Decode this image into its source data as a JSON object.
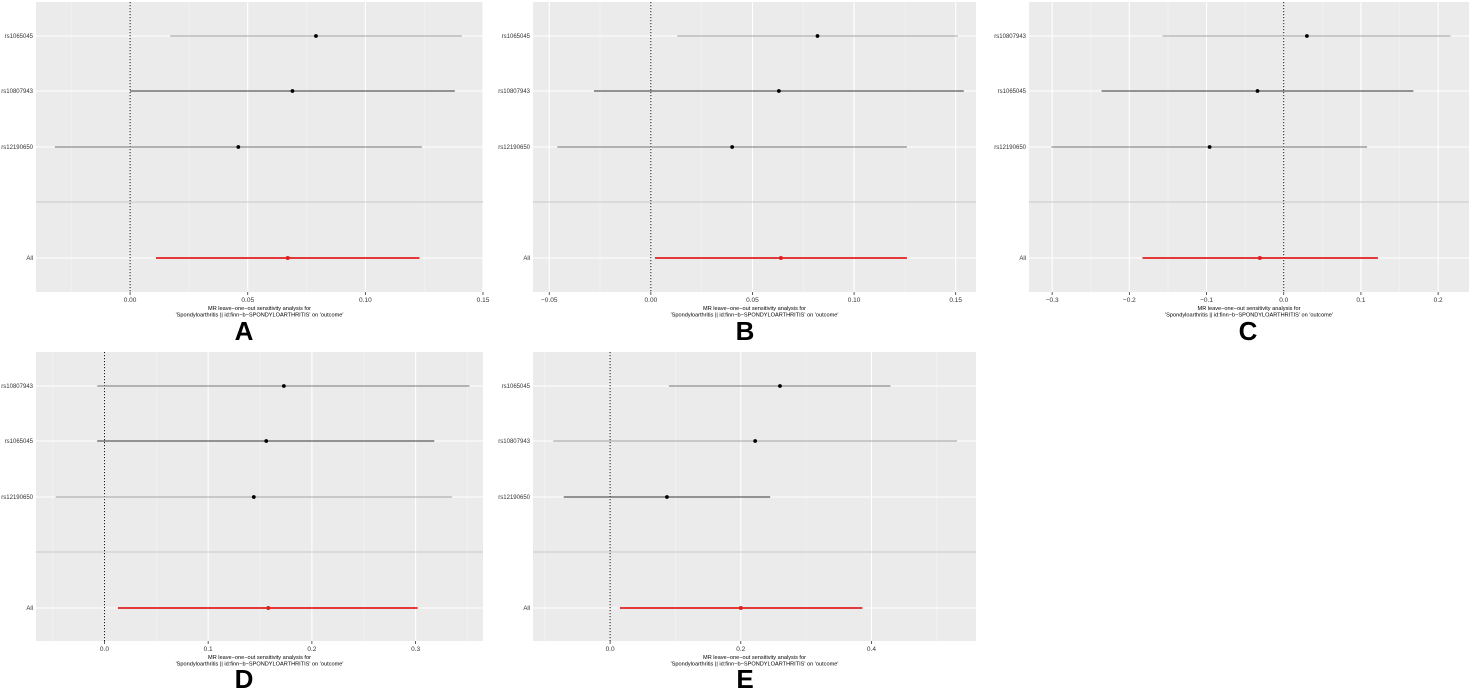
{
  "chart_data": [
    {
      "panel": "A",
      "type": "scatter",
      "subtype": "forest-plot",
      "xlabel_lines": [
        "MR leave−one−out sensitivity analysis for",
        "'Spondyloarthritis || id:finn−b−SPONDYLOARTHRITIS' on 'outcome'"
      ],
      "xlim": [
        -0.04,
        0.15
      ],
      "xticks": [
        0.0,
        0.05,
        0.1,
        0.15
      ],
      "xtick_labels": [
        "0.00",
        "0.05",
        "0.10",
        "0.15"
      ],
      "reference_line": 0,
      "snps": [
        {
          "label": "rs1065045",
          "estimate": 0.079,
          "lower": 0.017,
          "upper": 0.141,
          "color": "#a6a6a6"
        },
        {
          "label": "rs10807943",
          "estimate": 0.069,
          "lower": 0.0,
          "upper": 0.138,
          "color": "#3a3a3a"
        },
        {
          "label": "rs12190650",
          "estimate": 0.046,
          "lower": -0.032,
          "upper": 0.124,
          "color": "#7a7a7a"
        }
      ],
      "all": {
        "label": "All",
        "estimate": 0.067,
        "lower": 0.011,
        "upper": 0.123,
        "color": "#e02020"
      }
    },
    {
      "panel": "B",
      "type": "scatter",
      "subtype": "forest-plot",
      "xlabel_lines": [
        "MR leave−one−out sensitivity analysis for",
        "'Spondyloarthritis || id:finn−b−SPONDYLOARTHRITIS' on 'outcome'"
      ],
      "xlim": [
        -0.058,
        0.16
      ],
      "xticks": [
        -0.05,
        0.0,
        0.05,
        0.1,
        0.15
      ],
      "xtick_labels": [
        "−0.05",
        "0.00",
        "0.05",
        "0.10",
        "0.15"
      ],
      "reference_line": 0,
      "snps": [
        {
          "label": "rs1065045",
          "estimate": 0.082,
          "lower": 0.013,
          "upper": 0.151,
          "color": "#a6a6a6"
        },
        {
          "label": "rs10807943",
          "estimate": 0.063,
          "lower": -0.028,
          "upper": 0.154,
          "color": "#3a3a3a"
        },
        {
          "label": "rs12190650",
          "estimate": 0.04,
          "lower": -0.046,
          "upper": 0.126,
          "color": "#7a7a7a"
        }
      ],
      "all": {
        "label": "All",
        "estimate": 0.064,
        "lower": 0.002,
        "upper": 0.126,
        "color": "#e02020"
      }
    },
    {
      "panel": "C",
      "type": "scatter",
      "subtype": "forest-plot",
      "xlabel_lines": [
        "MR leave−one−out sensitivity analysis for",
        "'Spondyloarthritis || id:finn−b−SPONDYLOARTHRITIS' on 'outcome'"
      ],
      "xlim": [
        -0.33,
        0.24
      ],
      "xticks": [
        -0.3,
        -0.2,
        -0.1,
        0.0,
        0.1,
        0.2
      ],
      "xtick_labels": [
        "−0.3",
        "−0.2",
        "−0.1",
        "0.0",
        "0.1",
        "0.2"
      ],
      "reference_line": 0,
      "snps": [
        {
          "label": "rs10807943",
          "estimate": 0.03,
          "lower": -0.157,
          "upper": 0.216,
          "color": "#a6a6a6"
        },
        {
          "label": "rs1065045",
          "estimate": -0.034,
          "lower": -0.236,
          "upper": 0.168,
          "color": "#3a3a3a"
        },
        {
          "label": "rs12190650",
          "estimate": -0.096,
          "lower": -0.301,
          "upper": 0.108,
          "color": "#7a7a7a"
        }
      ],
      "all": {
        "label": "All",
        "estimate": -0.031,
        "lower": -0.183,
        "upper": 0.122,
        "color": "#e02020"
      }
    },
    {
      "panel": "D",
      "type": "scatter",
      "subtype": "forest-plot",
      "xlabel_lines": [
        "MR leave−one−out sensitivity analysis for",
        "'Spondyloarthritis || id:finn−b−SPONDYLOARTHRITIS' on 'outcome'"
      ],
      "xlim": [
        -0.066,
        0.365
      ],
      "xticks": [
        0.0,
        0.1,
        0.2,
        0.3
      ],
      "xtick_labels": [
        "0.0",
        "0.1",
        "0.2",
        "0.3"
      ],
      "reference_line": 0,
      "snps": [
        {
          "label": "rs10807943",
          "estimate": 0.173,
          "lower": -0.007,
          "upper": 0.352,
          "color": "#7a7a7a"
        },
        {
          "label": "rs1065045",
          "estimate": 0.156,
          "lower": -0.007,
          "upper": 0.318,
          "color": "#3a3a3a"
        },
        {
          "label": "rs12190650",
          "estimate": 0.144,
          "lower": -0.047,
          "upper": 0.335,
          "color": "#a6a6a6"
        }
      ],
      "all": {
        "label": "All",
        "estimate": 0.158,
        "lower": 0.013,
        "upper": 0.302,
        "color": "#e02020"
      }
    },
    {
      "panel": "E",
      "type": "scatter",
      "subtype": "forest-plot",
      "xlabel_lines": [
        "MR leave−one−out sensitivity analysis for",
        "'Spondyloarthritis || id:finn−b−SPONDYLOARTHRITIS' on 'outcome'"
      ],
      "xlim": [
        -0.118,
        0.56
      ],
      "xticks": [
        0.0,
        0.2,
        0.4
      ],
      "xtick_labels": [
        "0.0",
        "0.2",
        "0.4"
      ],
      "reference_line": 0,
      "snps": [
        {
          "label": "rs1065045",
          "estimate": 0.26,
          "lower": 0.09,
          "upper": 0.429,
          "color": "#7a7a7a"
        },
        {
          "label": "rs10807943",
          "estimate": 0.222,
          "lower": -0.087,
          "upper": 0.531,
          "color": "#a6a6a6"
        },
        {
          "label": "rs12190650",
          "estimate": 0.087,
          "lower": -0.071,
          "upper": 0.245,
          "color": "#3a3a3a"
        }
      ],
      "all": {
        "label": "All",
        "estimate": 0.2,
        "lower": 0.015,
        "upper": 0.386,
        "color": "#e02020"
      }
    }
  ],
  "theme": {
    "panel_background": "#ebebeb",
    "grid_major": "#ffffff",
    "grid_minor": "#f4f4f4",
    "separator": "#c8c8c8",
    "point": "#000000"
  }
}
